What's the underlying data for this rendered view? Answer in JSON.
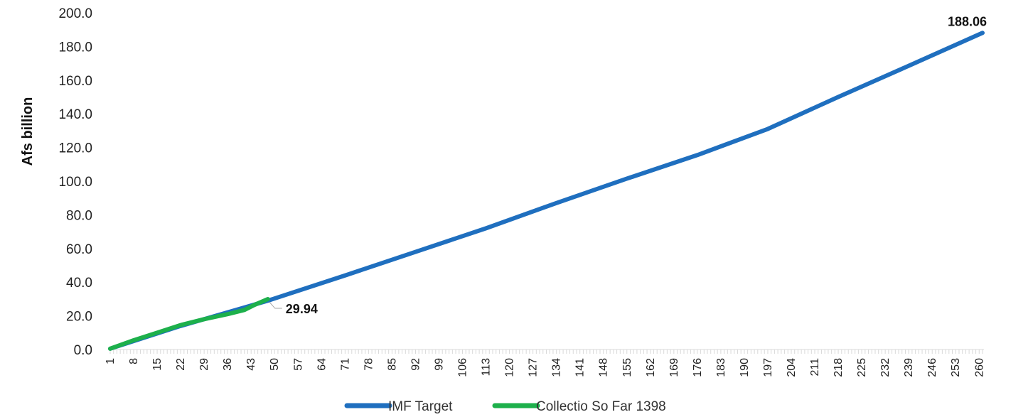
{
  "chart_data": {
    "type": "line",
    "title": "",
    "xlabel": "",
    "ylabel": "Afs billion",
    "ylim": [
      0,
      200
    ],
    "yticks": [
      "0.0",
      "20.0",
      "40.0",
      "60.0",
      "80.0",
      "100.0",
      "120.0",
      "140.0",
      "160.0",
      "180.0",
      "200.0"
    ],
    "xrange": [
      1,
      261
    ],
    "xticks": [
      1,
      8,
      15,
      22,
      29,
      36,
      43,
      50,
      57,
      64,
      71,
      78,
      85,
      92,
      99,
      106,
      113,
      120,
      127,
      134,
      141,
      148,
      155,
      162,
      169,
      176,
      183,
      190,
      197,
      204,
      211,
      218,
      225,
      232,
      239,
      246,
      253,
      260
    ],
    "grid": false,
    "legend": "bottom",
    "series": [
      {
        "name": "IMF Target",
        "color": "#1F6FBF",
        "x": [
          1,
          22,
          48,
          71,
          92,
          113,
          134,
          155,
          176,
          197,
          218,
          239,
          261
        ],
        "y": [
          0.5,
          14.0,
          29.0,
          44.0,
          58.0,
          72.0,
          87.0,
          101.5,
          115.5,
          131.0,
          150.0,
          168.5,
          188.06
        ]
      },
      {
        "name": "Collectio So Far 1398",
        "color": "#1DB04B",
        "x": [
          1,
          8,
          15,
          22,
          29,
          36,
          41,
          44,
          48
        ],
        "y": [
          0.5,
          5.5,
          10.0,
          14.5,
          18.0,
          21.0,
          23.5,
          26.5,
          29.94
        ]
      }
    ],
    "annotations": [
      {
        "series": "IMF Target",
        "x": 261,
        "y": 188.06,
        "text": "188.06"
      },
      {
        "series": "Collectio So Far 1398",
        "x": 48,
        "y": 29.94,
        "text": "29.94"
      }
    ]
  }
}
